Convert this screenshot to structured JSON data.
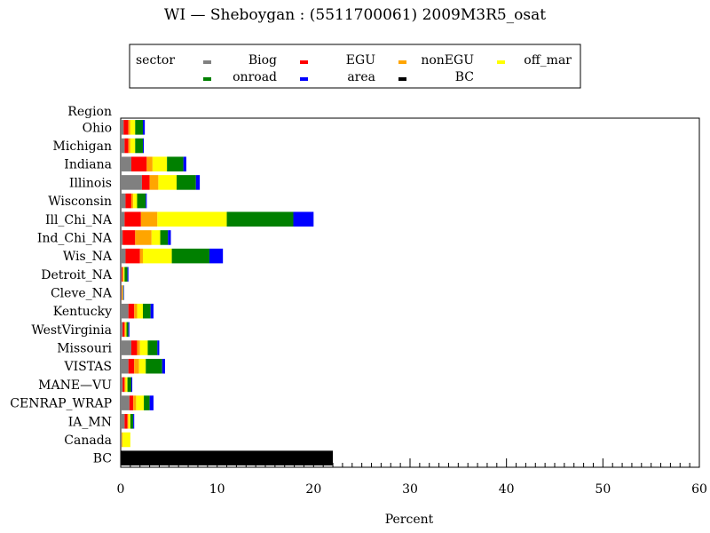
{
  "chart_data": {
    "type": "bar",
    "orientation": "horizontal",
    "stacked": true,
    "title": "WI — Sheboygan : (5511700061) 2009M3R5_osat",
    "xlabel": "Percent",
    "ylabel": "Region",
    "xlim": [
      0,
      60
    ],
    "x_ticks": [
      0,
      10,
      20,
      30,
      40,
      50,
      60
    ],
    "x_minor_step": 1,
    "grid": false,
    "legend": {
      "title": "sector",
      "placement": "top"
    },
    "categories": [
      "Ohio",
      "Michigan",
      "Indiana",
      "Illinois",
      "Wisconsin",
      "Ill_Chi_NA",
      "Ind_Chi_NA",
      "Wis_NA",
      "Detroit_NA",
      "Cleve_NA",
      "Kentucky",
      "WestVirginia",
      "Missouri",
      "VISTAS",
      "MANE—VU",
      "CENRAP_WRAP",
      "IA_MN",
      "Canada",
      "BC"
    ],
    "series": [
      {
        "name": "Biog",
        "color": "#808080",
        "values": [
          0.3,
          0.4,
          1.1,
          2.2,
          0.5,
          0.4,
          0.2,
          0.5,
          0.1,
          0.1,
          0.8,
          0.2,
          1.1,
          0.8,
          0.2,
          0.9,
          0.4,
          0.1,
          0
        ]
      },
      {
        "name": "EGU",
        "color": "#ff0000",
        "values": [
          0.5,
          0.4,
          1.6,
          0.8,
          0.6,
          1.7,
          1.3,
          1.5,
          0.1,
          0.05,
          0.6,
          0.2,
          0.6,
          0.6,
          0.2,
          0.4,
          0.3,
          0,
          0
        ]
      },
      {
        "name": "nonEGU",
        "color": "#ffa500",
        "values": [
          0.2,
          0.2,
          0.6,
          0.9,
          0.2,
          1.7,
          1.7,
          0.3,
          0.1,
          0.05,
          0.3,
          0.1,
          0.3,
          0.5,
          0.1,
          0.3,
          0.1,
          0.1,
          0
        ]
      },
      {
        "name": "off_mar",
        "color": "#ffff00",
        "values": [
          0.5,
          0.5,
          1.5,
          1.9,
          0.4,
          7.2,
          0.9,
          3.0,
          0.1,
          0.05,
          0.6,
          0.1,
          0.8,
          0.7,
          0.2,
          0.8,
          0.2,
          0.8,
          0
        ]
      },
      {
        "name": "onroad",
        "color": "#008000",
        "values": [
          0.8,
          0.8,
          1.7,
          2.0,
          0.9,
          6.9,
          0.8,
          3.9,
          0.3,
          0.05,
          0.8,
          0.2,
          1.0,
          1.7,
          0.4,
          0.6,
          0.3,
          0,
          0
        ]
      },
      {
        "name": "area",
        "color": "#0000ff",
        "values": [
          0.2,
          0.1,
          0.3,
          0.4,
          0.1,
          2.1,
          0.3,
          1.4,
          0.1,
          0.05,
          0.3,
          0.1,
          0.2,
          0.3,
          0.1,
          0.4,
          0.1,
          0,
          0
        ]
      },
      {
        "name": "BC",
        "color": "#000000",
        "values": [
          0,
          0,
          0,
          0,
          0,
          0,
          0,
          0,
          0,
          0,
          0,
          0,
          0,
          0,
          0,
          0,
          0,
          0,
          22.0
        ]
      }
    ]
  }
}
